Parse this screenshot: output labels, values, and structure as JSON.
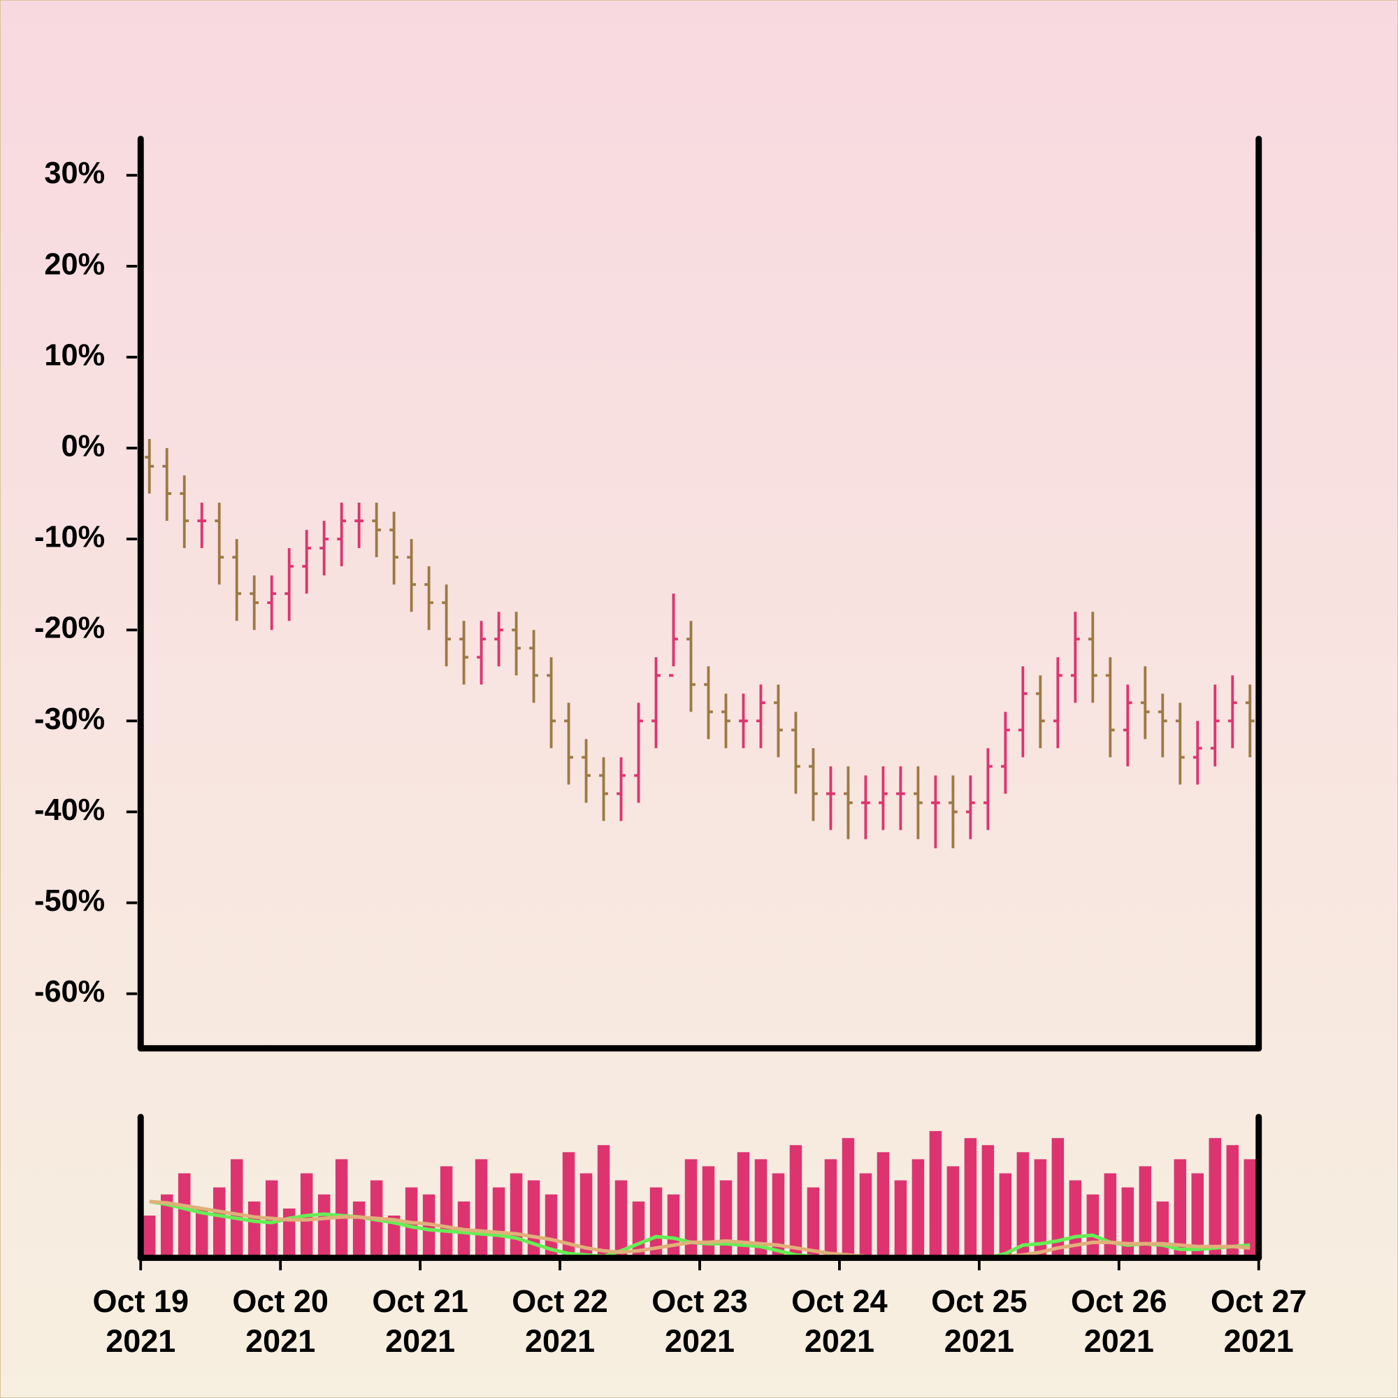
{
  "chart_data": {
    "type": "ohlc",
    "x": [
      "2021-10-19T00:00",
      "2021-10-19T03:00",
      "2021-10-19T06:00",
      "2021-10-19T09:00",
      "2021-10-19T12:00",
      "2021-10-19T15:00",
      "2021-10-19T18:00",
      "2021-10-19T21:00",
      "2021-10-20T00:00",
      "2021-10-20T03:00",
      "2021-10-20T06:00",
      "2021-10-20T09:00",
      "2021-10-20T12:00",
      "2021-10-20T15:00",
      "2021-10-20T18:00",
      "2021-10-20T21:00",
      "2021-10-21T00:00",
      "2021-10-21T03:00",
      "2021-10-21T06:00",
      "2021-10-21T09:00",
      "2021-10-21T12:00",
      "2021-10-21T15:00",
      "2021-10-21T18:00",
      "2021-10-21T21:00",
      "2021-10-22T00:00",
      "2021-10-22T03:00",
      "2021-10-22T06:00",
      "2021-10-22T09:00",
      "2021-10-22T12:00",
      "2021-10-22T15:00",
      "2021-10-22T18:00",
      "2021-10-22T21:00",
      "2021-10-23T00:00",
      "2021-10-23T03:00",
      "2021-10-23T06:00",
      "2021-10-23T09:00",
      "2021-10-23T12:00",
      "2021-10-23T15:00",
      "2021-10-23T18:00",
      "2021-10-23T21:00",
      "2021-10-24T00:00",
      "2021-10-24T03:00",
      "2021-10-24T06:00",
      "2021-10-24T09:00",
      "2021-10-24T12:00",
      "2021-10-24T15:00",
      "2021-10-24T18:00",
      "2021-10-24T21:00",
      "2021-10-25T00:00",
      "2021-10-25T03:00",
      "2021-10-25T06:00",
      "2021-10-25T09:00",
      "2021-10-25T12:00",
      "2021-10-25T15:00",
      "2021-10-25T18:00",
      "2021-10-25T21:00",
      "2021-10-26T00:00",
      "2021-10-26T03:00",
      "2021-10-26T06:00",
      "2021-10-26T09:00",
      "2021-10-26T12:00",
      "2021-10-26T15:00",
      "2021-10-26T18:00",
      "2021-10-26T21:00"
    ],
    "open": [
      -1,
      -2,
      -5,
      -8,
      -8,
      -12,
      -16,
      -17,
      -16,
      -13,
      -11,
      -10,
      -8,
      -8,
      -9,
      -12,
      -15,
      -17,
      -21,
      -23,
      -21,
      -20,
      -22,
      -25,
      -30,
      -34,
      -36,
      -38,
      -36,
      -30,
      -25,
      -21,
      -26,
      -29,
      -30,
      -30,
      -28,
      -31,
      -35,
      -38,
      -38,
      -39,
      -39,
      -38,
      -38,
      -39,
      -39,
      -40,
      -39,
      -35,
      -31,
      -27,
      -30,
      -25,
      -21,
      -25,
      -31,
      -28,
      -29,
      -30,
      -34,
      -33,
      -30,
      -28
    ],
    "high": [
      1,
      0,
      -3,
      -6,
      -6,
      -10,
      -14,
      -14,
      -11,
      -9,
      -8,
      -6,
      -6,
      -6,
      -7,
      -10,
      -13,
      -15,
      -19,
      -19,
      -18,
      -18,
      -20,
      -23,
      -28,
      -32,
      -34,
      -34,
      -28,
      -23,
      -16,
      -19,
      -24,
      -27,
      -27,
      -26,
      -26,
      -29,
      -33,
      -35,
      -35,
      -36,
      -35,
      -35,
      -35,
      -36,
      -36,
      -36,
      -33,
      -29,
      -24,
      -25,
      -23,
      -18,
      -18,
      -23,
      -26,
      -24,
      -27,
      -28,
      -30,
      -26,
      -25,
      -26
    ],
    "low": [
      -5,
      -8,
      -11,
      -11,
      -15,
      -19,
      -20,
      -20,
      -19,
      -16,
      -14,
      -13,
      -11,
      -12,
      -15,
      -18,
      -20,
      -24,
      -26,
      -26,
      -24,
      -25,
      -28,
      -33,
      -37,
      -39,
      -41,
      -41,
      -39,
      -33,
      -24,
      -29,
      -32,
      -33,
      -33,
      -33,
      -34,
      -38,
      -41,
      -42,
      -43,
      -43,
      -42,
      -42,
      -43,
      -44,
      -44,
      -43,
      -42,
      -38,
      -34,
      -33,
      -33,
      -28,
      -28,
      -34,
      -35,
      -32,
      -34,
      -37,
      -37,
      -35,
      -33,
      -34
    ],
    "close": [
      -2,
      -5,
      -8,
      -8,
      -12,
      -16,
      -17,
      -16,
      -13,
      -11,
      -10,
      -8,
      -8,
      -9,
      -12,
      -15,
      -17,
      -21,
      -23,
      -21,
      -20,
      -22,
      -25,
      -30,
      -34,
      -36,
      -38,
      -36,
      -30,
      -25,
      -21,
      -26,
      -29,
      -30,
      -30,
      -28,
      -31,
      -35,
      -38,
      -38,
      -39,
      -39,
      -38,
      -38,
      -39,
      -39,
      -40,
      -39,
      -35,
      -31,
      -27,
      -30,
      -25,
      -21,
      -25,
      -31,
      -28,
      -29,
      -30,
      -34,
      -33,
      -30,
      -28,
      -30
    ],
    "up_color": "#dd3470",
    "down_color": "#9c7a45",
    "ylim": [
      -66,
      34
    ],
    "yticks": [
      {
        "value": 30,
        "label": "30%"
      },
      {
        "value": 20,
        "label": "20%"
      },
      {
        "value": 10,
        "label": "10%"
      },
      {
        "value": 0,
        "label": "0%"
      },
      {
        "value": -10,
        "label": "-10%"
      },
      {
        "value": -20,
        "label": "-20%"
      },
      {
        "value": -30,
        "label": "-30%"
      },
      {
        "value": -40,
        "label": "-40%"
      },
      {
        "value": -50,
        "label": "-50%"
      },
      {
        "value": -60,
        "label": "-60%"
      }
    ],
    "xlim": [
      "2021-10-19",
      "2021-10-27"
    ],
    "xticks": [
      {
        "value": "2021-10-19",
        "label": "Oct 19\n2021"
      },
      {
        "value": "2021-10-20",
        "label": "Oct 20\n2021"
      },
      {
        "value": "2021-10-21",
        "label": "Oct 21\n2021"
      },
      {
        "value": "2021-10-22",
        "label": "Oct 22\n2021"
      },
      {
        "value": "2021-10-23",
        "label": "Oct 23\n2021"
      },
      {
        "value": "2021-10-24",
        "label": "Oct 24\n2021"
      },
      {
        "value": "2021-10-25",
        "label": "Oct 25\n2021"
      },
      {
        "value": "2021-10-26",
        "label": "Oct 26\n2021"
      },
      {
        "value": "2021-10-27",
        "label": "Oct 27\n2021"
      }
    ],
    "volume": {
      "color": "#dd3470",
      "ylim": [
        0,
        100
      ],
      "values": [
        30,
        45,
        60,
        35,
        50,
        70,
        40,
        55,
        35,
        60,
        45,
        70,
        40,
        55,
        30,
        50,
        45,
        65,
        40,
        70,
        50,
        60,
        55,
        45,
        75,
        60,
        80,
        55,
        40,
        50,
        45,
        70,
        65,
        55,
        75,
        70,
        60,
        80,
        50,
        70,
        85,
        60,
        75,
        55,
        70,
        90,
        65,
        85,
        80,
        60,
        75,
        70,
        85,
        55,
        45,
        60,
        50,
        65,
        40,
        70,
        60,
        85,
        80,
        70
      ],
      "series": [
        {
          "color": "#66ee55",
          "values": [
            40,
            38,
            35,
            32,
            30,
            28,
            26,
            25,
            28,
            30,
            31,
            30,
            29,
            27,
            25,
            22,
            20,
            19,
            18,
            17,
            16,
            14,
            10,
            6,
            3,
            2,
            1,
            5,
            10,
            15,
            14,
            11,
            10,
            10,
            9,
            8,
            5,
            2,
            1,
            0,
            0,
            0,
            0,
            0,
            0,
            0,
            0,
            0,
            0,
            3,
            9,
            10,
            12,
            15,
            16,
            11,
            9,
            10,
            9,
            6,
            6,
            7,
            8,
            9
          ]
        },
        {
          "color": "#e0b07a",
          "values": [
            40,
            39,
            37,
            35,
            33,
            31,
            29,
            28,
            27,
            27,
            28,
            29,
            29,
            28,
            27,
            25,
            24,
            22,
            20,
            19,
            18,
            17,
            15,
            13,
            10,
            7,
            5,
            4,
            5,
            7,
            9,
            11,
            11,
            12,
            11,
            10,
            9,
            7,
            5,
            3,
            2,
            1,
            0,
            0,
            0,
            0,
            0,
            0,
            0,
            1,
            2,
            4,
            7,
            9,
            11,
            11,
            10,
            10,
            10,
            9,
            8,
            8,
            8,
            7
          ]
        }
      ]
    }
  }
}
